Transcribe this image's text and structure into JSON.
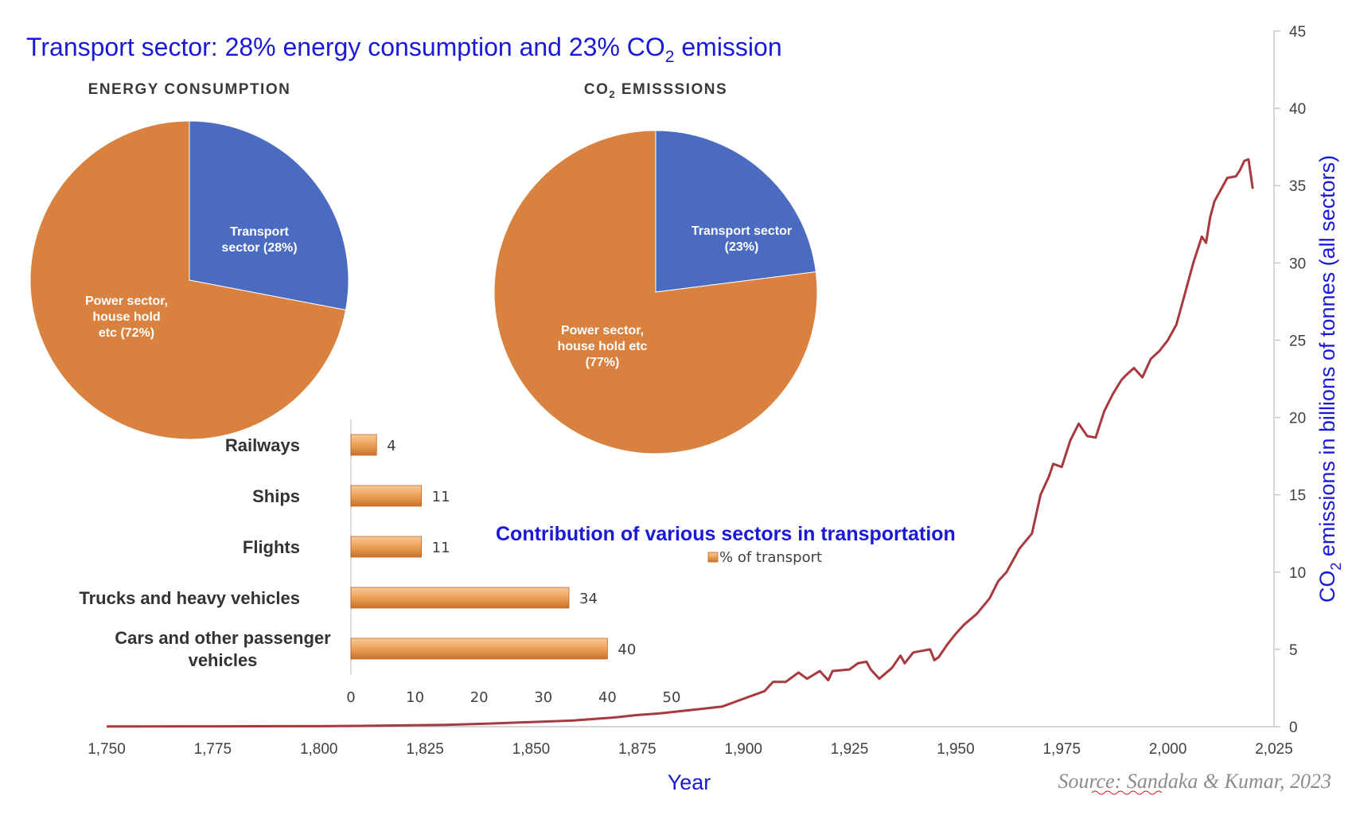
{
  "header": {
    "title_main": "Transport sector: 28% energy consumption and 23% CO",
    "title_sub": "2",
    "title_end": " emission"
  },
  "source": "Source: Sandaka & Kumar, 2023",
  "chart_data": [
    {
      "type": "pie",
      "title": "ENERGY CONSUMPTION",
      "slices": [
        {
          "label_lines": [
            "Transport",
            "sector (28%)"
          ],
          "value": 28,
          "color": "#4a6bbf"
        },
        {
          "label_lines": [
            "Power sector,",
            "house hold",
            "etc (72%)"
          ],
          "value": 72,
          "color": "#d9813f"
        }
      ]
    },
    {
      "type": "pie",
      "title_main": "CO",
      "title_sub": "2",
      "title_end": " EMISSSIONS",
      "slices": [
        {
          "label_lines": [
            "Transport sector",
            "(23%)"
          ],
          "value": 23,
          "color": "#4a6bbf"
        },
        {
          "label_lines": [
            "Power sector,",
            "house hold etc",
            "(77%)"
          ],
          "value": 77,
          "color": "#d9813f"
        }
      ]
    },
    {
      "type": "bar",
      "orientation": "horizontal",
      "title": "Contribution of various sectors in transportation",
      "legend": "% of transport",
      "categories": [
        {
          "lines": [
            "Railways"
          ],
          "value": 4
        },
        {
          "lines": [
            "Ships"
          ],
          "value": 11
        },
        {
          "lines": [
            "Flights"
          ],
          "value": 11
        },
        {
          "lines": [
            "Trucks and heavy vehicles"
          ],
          "value": 34
        },
        {
          "lines": [
            "Cars and other passenger",
            "vehicles"
          ],
          "value": 40
        }
      ],
      "xlim": [
        0,
        50
      ],
      "xticks": [
        "0",
        "10",
        "20",
        "30",
        "40",
        "50"
      ],
      "bar_color": "#e8923f"
    },
    {
      "type": "line",
      "xlabel": "Year",
      "ylabel_main": "CO",
      "ylabel_sub": "2",
      "ylabel_end": " emissions in billions of tonnes (all sectors)",
      "xlim": [
        1750,
        2025
      ],
      "ylim": [
        0,
        45
      ],
      "xticks": [
        "1,750",
        "1,775",
        "1,800",
        "1,825",
        "1,850",
        "1,875",
        "1,900",
        "1,925",
        "1,950",
        "1,975",
        "2,000",
        "2,025"
      ],
      "yticks": [
        "0",
        "5",
        "10",
        "15",
        "20",
        "25",
        "30",
        "35",
        "40",
        "45"
      ],
      "line_color": "#a83a3f",
      "x": [
        1750,
        1775,
        1800,
        1810,
        1820,
        1830,
        1840,
        1850,
        1860,
        1865,
        1870,
        1875,
        1880,
        1885,
        1890,
        1895,
        1900,
        1905,
        1907,
        1910,
        1913,
        1915,
        1918,
        1920,
        1921,
        1925,
        1927,
        1929,
        1930,
        1932,
        1935,
        1937,
        1938,
        1940,
        1942,
        1944,
        1945,
        1946,
        1948,
        1950,
        1952,
        1955,
        1958,
        1960,
        1962,
        1965,
        1968,
        1970,
        1972,
        1973,
        1975,
        1977,
        1979,
        1981,
        1983,
        1985,
        1987,
        1989,
        1990,
        1992,
        1994,
        1996,
        1998,
        2000,
        2002,
        2004,
        2006,
        2008,
        2009,
        2010,
        2011,
        2012,
        2014,
        2016,
        2017,
        2018,
        2019,
        2020
      ],
      "y": [
        0.01,
        0.02,
        0.03,
        0.05,
        0.08,
        0.12,
        0.2,
        0.3,
        0.4,
        0.5,
        0.6,
        0.75,
        0.85,
        1.0,
        1.15,
        1.3,
        1.8,
        2.3,
        2.9,
        2.9,
        3.5,
        3.1,
        3.6,
        3.0,
        3.6,
        3.7,
        4.1,
        4.2,
        3.7,
        3.1,
        3.8,
        4.6,
        4.1,
        4.8,
        4.9,
        5.0,
        4.3,
        4.5,
        5.3,
        6.0,
        6.6,
        7.3,
        8.3,
        9.4,
        10.0,
        11.5,
        12.5,
        15.0,
        16.2,
        17.0,
        16.8,
        18.5,
        19.6,
        18.8,
        18.7,
        20.4,
        21.5,
        22.4,
        22.7,
        23.2,
        22.6,
        23.8,
        24.3,
        25.0,
        26.0,
        28.0,
        30.0,
        31.7,
        31.3,
        33.0,
        34.0,
        34.5,
        35.5,
        35.6,
        36.0,
        36.6,
        36.7,
        34.8
      ]
    }
  ]
}
